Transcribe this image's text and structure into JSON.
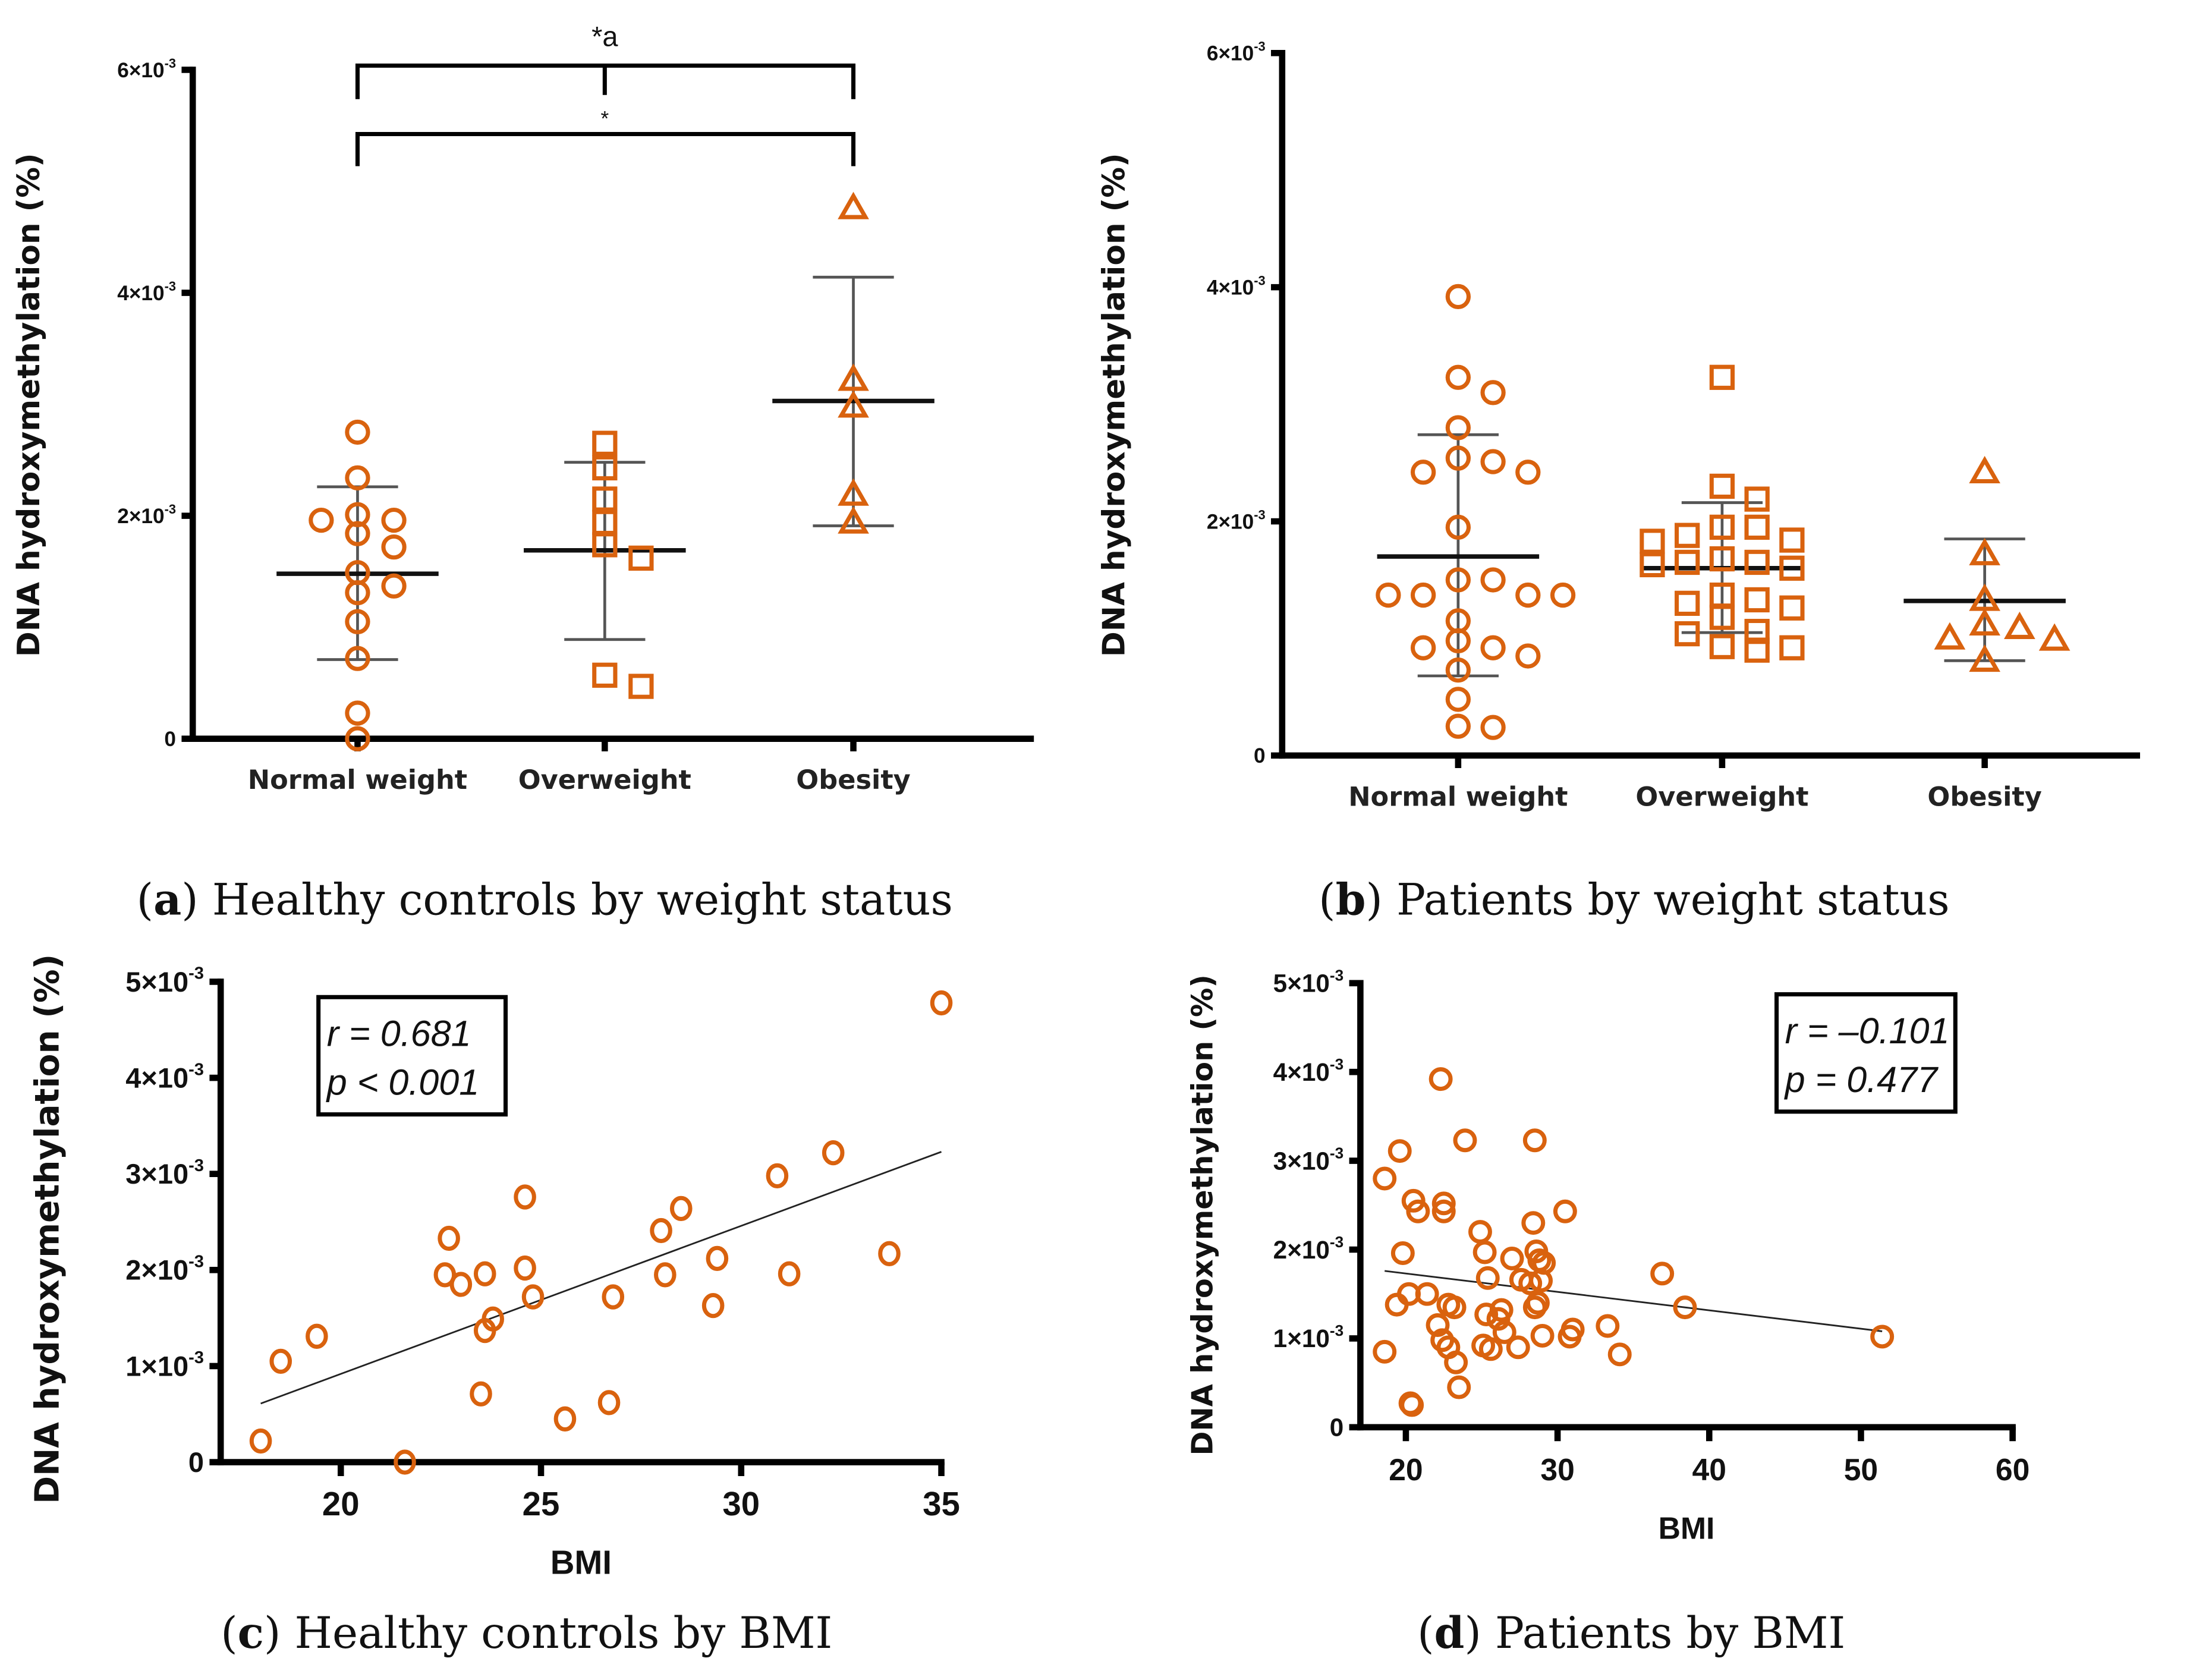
{
  "marker_color": "#D9620E",
  "chart_data": [
    {
      "id": "a",
      "type": "scatter",
      "subtype": "dot-plot-mean-sd",
      "caption_letter": "a",
      "caption_text": " Healthy controls by weight status",
      "ylabel": "DNA hydroxymethylation (%)",
      "xlabel": "",
      "ylim": [
        0,
        0.006
      ],
      "yticks": [
        0,
        0.002,
        0.004,
        0.006
      ],
      "ytick_labels": [
        "0",
        "2×10",
        "4×10",
        "6×10"
      ],
      "ytick_exp": [
        "",
        "-3",
        "-3",
        "-3"
      ],
      "categories": [
        "Normal weight",
        "Overweight",
        "Obesity"
      ],
      "markers": [
        "circle",
        "square",
        "triangle"
      ],
      "groups": [
        {
          "name": "Normal weight",
          "mean": 0.00148,
          "sd_upper": 0.00226,
          "sd_lower": 0.00071,
          "values": [
            0.00275,
            0.00234,
            0.00201,
            0.00196,
            0.00196,
            0.00184,
            0.00172,
            0.00149,
            0.00137,
            0.00131,
            0.00105,
            0.00072,
            0.00023,
            0.0
          ]
        },
        {
          "name": "Overweight",
          "mean": 0.00169,
          "sd_upper": 0.00248,
          "sd_lower": 0.00089,
          "values": [
            0.00265,
            0.00243,
            0.00215,
            0.00194,
            0.00174,
            0.00162,
            0.00057,
            0.00047
          ]
        },
        {
          "name": "Obesity",
          "mean": 0.00303,
          "sd_upper": 0.00414,
          "sd_lower": 0.00191,
          "values": [
            0.00476,
            0.00322,
            0.00298,
            0.00219,
            0.00194
          ]
        }
      ],
      "annotations": [
        {
          "label": "*a",
          "from": "Normal weight",
          "to": "Obesity",
          "middle_tick": "Overweight"
        },
        {
          "label": "*",
          "from": "Normal weight",
          "to": "Obesity"
        }
      ]
    },
    {
      "id": "b",
      "type": "scatter",
      "subtype": "dot-plot-mean-sd",
      "caption_letter": "b",
      "caption_text": " Patients by weight status",
      "ylabel": "DNA hydroxymethylation (%)",
      "xlabel": "",
      "ylim": [
        0,
        0.006
      ],
      "yticks": [
        0,
        0.002,
        0.004,
        0.006
      ],
      "ytick_labels": [
        "0",
        "2×10",
        "4×10",
        "6×10"
      ],
      "ytick_exp": [
        "",
        "-3",
        "-3",
        "-3"
      ],
      "categories": [
        "Normal weight",
        "Overweight",
        "Obesity"
      ],
      "markers": [
        "circle",
        "square",
        "triangle"
      ],
      "groups": [
        {
          "name": "Normal weight",
          "mean": 0.0017,
          "sd_upper": 0.00274,
          "sd_lower": 0.00068,
          "values": [
            0.00392,
            0.00323,
            0.0031,
            0.0028,
            0.00254,
            0.00251,
            0.00242,
            0.00242,
            0.00195,
            0.0015,
            0.0015,
            0.00137,
            0.00137,
            0.00137,
            0.00137,
            0.00115,
            0.00098,
            0.00092,
            0.00092,
            0.00085,
            0.00073,
            0.00048,
            0.00025,
            0.00024
          ]
        },
        {
          "name": "Overweight",
          "mean": 0.0016,
          "sd_upper": 0.00216,
          "sd_lower": 0.00105,
          "values": [
            0.00323,
            0.0023,
            0.00219,
            0.00195,
            0.00195,
            0.00188,
            0.00184,
            0.00183,
            0.00168,
            0.00165,
            0.00165,
            0.0016,
            0.00163,
            0.00137,
            0.00133,
            0.0013,
            0.00126,
            0.00118,
            0.00106,
            0.00104,
            0.00093,
            0.00092,
            0.0009
          ]
        },
        {
          "name": "Obesity",
          "mean": 0.00132,
          "sd_upper": 0.00185,
          "sd_lower": 0.00081,
          "values": [
            0.00242,
            0.00172,
            0.00133,
            0.00112,
            0.00109,
            0.001,
            0.00099,
            0.00081
          ]
        }
      ]
    },
    {
      "id": "c",
      "type": "scatter",
      "caption_letter": "c",
      "caption_text": " Healthy controls by BMI",
      "ylabel": "DNA hydroxymethylation (%)",
      "xlabel": "BMI",
      "xlim": [
        17,
        35
      ],
      "ylim": [
        0,
        0.005
      ],
      "xticks": [
        20,
        25,
        30,
        35
      ],
      "xtick_labels": [
        "20",
        "25",
        "30",
        "35"
      ],
      "yticks": [
        0,
        0.001,
        0.002,
        0.003,
        0.004,
        0.005
      ],
      "ytick_labels": [
        "0",
        "1×10",
        "2×10",
        "3×10",
        "4×10",
        "5×10"
      ],
      "ytick_exp": [
        "",
        "-3",
        "-3",
        "-3",
        "-3",
        "-3"
      ],
      "stats": {
        "r_text": "r = 0.681",
        "p_text": "p < 0.001"
      },
      "regression": {
        "x": [
          18.0,
          35.0
        ],
        "y": [
          0.00061,
          0.00323
        ]
      },
      "points": [
        [
          18.0,
          0.00022
        ],
        [
          18.5,
          0.00105
        ],
        [
          19.4,
          0.00131
        ],
        [
          21.6,
          0.0
        ],
        [
          22.7,
          0.00233
        ],
        [
          22.6,
          0.00195
        ],
        [
          23.0,
          0.00185
        ],
        [
          23.5,
          0.00071
        ],
        [
          23.6,
          0.00137
        ],
        [
          23.6,
          0.00196
        ],
        [
          23.8,
          0.00149
        ],
        [
          24.6,
          0.00276
        ],
        [
          24.6,
          0.00202
        ],
        [
          24.8,
          0.00172
        ],
        [
          25.6,
          0.00045
        ],
        [
          26.7,
          0.00062
        ],
        [
          26.8,
          0.00172
        ],
        [
          28.0,
          0.00241
        ],
        [
          28.1,
          0.00195
        ],
        [
          28.5,
          0.00264
        ],
        [
          29.4,
          0.00212
        ],
        [
          29.3,
          0.00163
        ],
        [
          30.9,
          0.00298
        ],
        [
          31.2,
          0.00196
        ],
        [
          32.3,
          0.00322
        ],
        [
          33.7,
          0.00217
        ],
        [
          35.0,
          0.00478
        ]
      ]
    },
    {
      "id": "d",
      "type": "scatter",
      "caption_letter": "d",
      "caption_text": " Patients by BMI",
      "ylabel": "DNA hydroxymethylation (%)",
      "xlabel": "BMI",
      "xlim": [
        17,
        60
      ],
      "ylim": [
        0,
        0.005
      ],
      "xticks": [
        20,
        30,
        40,
        50,
        60
      ],
      "xtick_labels": [
        "20",
        "30",
        "40",
        "50",
        "60"
      ],
      "yticks": [
        0,
        0.001,
        0.002,
        0.003,
        0.004,
        0.005
      ],
      "ytick_labels": [
        "0",
        "1×10",
        "2×10",
        "3×10",
        "4×10",
        "5×10"
      ],
      "ytick_exp": [
        "",
        "-3",
        "-3",
        "-3",
        "-3",
        "-3"
      ],
      "stats": {
        "r_text": "r = –0.101",
        "p_text": "p = 0.477"
      },
      "regression": {
        "x": [
          18.6,
          51.4
        ],
        "y": [
          0.00176,
          0.00108
        ]
      },
      "points": [
        [
          18.6,
          0.0028
        ],
        [
          19.6,
          0.00311
        ],
        [
          19.8,
          0.00196
        ],
        [
          18.6,
          0.00085
        ],
        [
          19.4,
          0.00138
        ],
        [
          20.2,
          0.0015
        ],
        [
          20.5,
          0.00255
        ],
        [
          20.8,
          0.00243
        ],
        [
          20.3,
          0.00027
        ],
        [
          20.4,
          0.00025
        ],
        [
          21.4,
          0.0015
        ],
        [
          22.3,
          0.00392
        ],
        [
          22.5,
          0.00252
        ],
        [
          22.5,
          0.00243
        ],
        [
          22.1,
          0.00115
        ],
        [
          22.4,
          0.00098
        ],
        [
          22.8,
          0.00138
        ],
        [
          23.2,
          0.00135
        ],
        [
          22.8,
          0.0009
        ],
        [
          23.3,
          0.00073
        ],
        [
          23.5,
          0.00045
        ],
        [
          23.9,
          0.00323
        ],
        [
          24.9,
          0.0022
        ],
        [
          25.2,
          0.00197
        ],
        [
          25.4,
          0.00168
        ],
        [
          25.3,
          0.00127
        ],
        [
          25.1,
          0.00092
        ],
        [
          25.6,
          0.00088
        ],
        [
          26.1,
          0.00122
        ],
        [
          26.3,
          0.00132
        ],
        [
          26.5,
          0.00107
        ],
        [
          27.0,
          0.0019
        ],
        [
          27.6,
          0.00166
        ],
        [
          27.4,
          0.0009
        ],
        [
          28.2,
          0.00162
        ],
        [
          28.4,
          0.0023
        ],
        [
          28.5,
          0.00323
        ],
        [
          28.6,
          0.00198
        ],
        [
          28.8,
          0.00188
        ],
        [
          29.1,
          0.00185
        ],
        [
          28.5,
          0.00135
        ],
        [
          28.7,
          0.0014
        ],
        [
          28.9,
          0.00165
        ],
        [
          29.0,
          0.00103
        ],
        [
          30.5,
          0.00243
        ],
        [
          30.8,
          0.00102
        ],
        [
          31.0,
          0.0011
        ],
        [
          33.3,
          0.00114
        ],
        [
          34.1,
          0.00082
        ],
        [
          36.9,
          0.00173
        ],
        [
          38.4,
          0.00135
        ],
        [
          51.4,
          0.00102
        ]
      ]
    }
  ]
}
